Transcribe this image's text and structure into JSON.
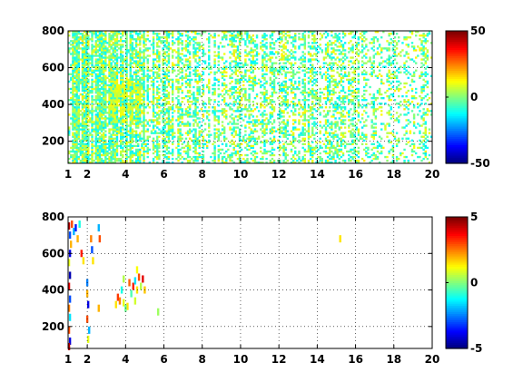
{
  "chart_data": [
    {
      "type": "heatmap",
      "title": "",
      "xlabel": "",
      "ylabel": "",
      "xlim": [
        1,
        20
      ],
      "ylim": [
        80,
        800
      ],
      "xticks": [
        1,
        2,
        4,
        6,
        8,
        10,
        12,
        14,
        16,
        18,
        20
      ],
      "yticks": [
        200,
        400,
        600,
        800
      ],
      "grid": true,
      "colorbar": {
        "min": -50,
        "max": 50,
        "ticks": [
          -50,
          0,
          50
        ],
        "colormap": "jet"
      },
      "value_range": [
        -15,
        15
      ],
      "hotspot": {
        "x": 4,
        "y": 420,
        "label_value": 12
      },
      "column_density": [
        0.9,
        0.85,
        0.8,
        0.75,
        0.6,
        0.55,
        0.5,
        0.45,
        0.45,
        0.4,
        0.5,
        0.45,
        0.5,
        0.45,
        0.4,
        0.35,
        0.3,
        0.3,
        0.35,
        0.3
      ]
    },
    {
      "type": "heatmap",
      "title": "",
      "xlabel": "",
      "ylabel": "",
      "xlim": [
        1,
        20
      ],
      "ylim": [
        80,
        800
      ],
      "xticks": [
        1,
        2,
        4,
        6,
        8,
        10,
        12,
        14,
        16,
        18,
        20
      ],
      "yticks": [
        200,
        400,
        600,
        800
      ],
      "grid": true,
      "colorbar": {
        "min": -5,
        "max": 5,
        "ticks": [
          -5,
          0,
          5
        ],
        "colormap": "jet"
      },
      "points": [
        {
          "x": 1.05,
          "y": 750,
          "v": 4.5
        },
        {
          "x": 1.1,
          "y": 700,
          "v": -3
        },
        {
          "x": 1.15,
          "y": 650,
          "v": 2
        },
        {
          "x": 1.1,
          "y": 600,
          "v": -4
        },
        {
          "x": 1.2,
          "y": 760,
          "v": 3
        },
        {
          "x": 1.3,
          "y": 720,
          "v": -2
        },
        {
          "x": 1.05,
          "y": 550,
          "v": 1
        },
        {
          "x": 1.1,
          "y": 480,
          "v": -4.5
        },
        {
          "x": 1.05,
          "y": 420,
          "v": 4
        },
        {
          "x": 1.1,
          "y": 350,
          "v": -3
        },
        {
          "x": 1.05,
          "y": 300,
          "v": 2.5
        },
        {
          "x": 1.1,
          "y": 250,
          "v": -1.5
        },
        {
          "x": 1.05,
          "y": 180,
          "v": 3
        },
        {
          "x": 1.1,
          "y": 120,
          "v": -4
        },
        {
          "x": 1.05,
          "y": 90,
          "v": 4.5
        },
        {
          "x": 1.4,
          "y": 740,
          "v": -3.5
        },
        {
          "x": 1.5,
          "y": 680,
          "v": 2
        },
        {
          "x": 1.6,
          "y": 760,
          "v": -1
        },
        {
          "x": 1.7,
          "y": 600,
          "v": 3.5
        },
        {
          "x": 1.8,
          "y": 560,
          "v": 1.5
        },
        {
          "x": 2.0,
          "y": 440,
          "v": -2.5
        },
        {
          "x": 2.0,
          "y": 380,
          "v": 2
        },
        {
          "x": 2.05,
          "y": 320,
          "v": -4
        },
        {
          "x": 2.0,
          "y": 240,
          "v": 3
        },
        {
          "x": 2.1,
          "y": 180,
          "v": -2
        },
        {
          "x": 2.05,
          "y": 130,
          "v": 1
        },
        {
          "x": 2.2,
          "y": 680,
          "v": 2.5
        },
        {
          "x": 2.25,
          "y": 620,
          "v": -3
        },
        {
          "x": 2.3,
          "y": 560,
          "v": 1.5
        },
        {
          "x": 2.6,
          "y": 740,
          "v": -2
        },
        {
          "x": 2.65,
          "y": 680,
          "v": 3
        },
        {
          "x": 2.6,
          "y": 300,
          "v": 2
        },
        {
          "x": 3.5,
          "y": 320,
          "v": 1.5
        },
        {
          "x": 3.7,
          "y": 340,
          "v": 2.5
        },
        {
          "x": 3.9,
          "y": 330,
          "v": 1
        },
        {
          "x": 3.8,
          "y": 400,
          "v": -1
        },
        {
          "x": 3.9,
          "y": 460,
          "v": 0.5
        },
        {
          "x": 4.1,
          "y": 310,
          "v": 1.5
        },
        {
          "x": 4.3,
          "y": 380,
          "v": -0.5
        },
        {
          "x": 4.4,
          "y": 420,
          "v": 3.5
        },
        {
          "x": 4.5,
          "y": 450,
          "v": -1.5
        },
        {
          "x": 4.6,
          "y": 400,
          "v": 1.5
        },
        {
          "x": 4.7,
          "y": 470,
          "v": 3
        },
        {
          "x": 4.8,
          "y": 420,
          "v": 0.5
        },
        {
          "x": 4.9,
          "y": 460,
          "v": 4
        },
        {
          "x": 4.5,
          "y": 340,
          "v": 0.8
        },
        {
          "x": 4.2,
          "y": 440,
          "v": 2.8
        },
        {
          "x": 4.6,
          "y": 510,
          "v": 1.2
        },
        {
          "x": 4.0,
          "y": 300,
          "v": -0.2
        },
        {
          "x": 3.6,
          "y": 360,
          "v": 3.2
        },
        {
          "x": 5.0,
          "y": 400,
          "v": 1.8
        },
        {
          "x": 5.7,
          "y": 280,
          "v": 0.3
        },
        {
          "x": 15.2,
          "y": 680,
          "v": 1.5
        }
      ]
    }
  ]
}
